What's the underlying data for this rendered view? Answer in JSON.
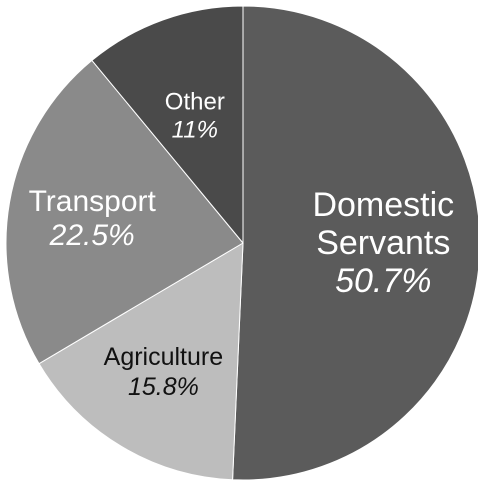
{
  "chart_data": {
    "type": "pie",
    "title": "",
    "start_angle_deg": 0,
    "direction": "clockwise",
    "slices": [
      {
        "label_lines": [
          "Domestic",
          "Servants"
        ],
        "percent_label": "50.7%",
        "value": 50.7,
        "color": "#5b5b5b",
        "label_color": "#ffffff"
      },
      {
        "label_lines": [
          "Agriculture"
        ],
        "percent_label": "15.8%",
        "value": 15.8,
        "color": "#bdbdbd",
        "label_color": "#111111"
      },
      {
        "label_lines": [
          "Transport"
        ],
        "percent_label": "22.5%",
        "value": 22.5,
        "color": "#8a8a8a",
        "label_color": "#ffffff"
      },
      {
        "label_lines": [
          "Other"
        ],
        "percent_label": "11%",
        "value": 11,
        "color": "#4a4a4a",
        "label_color": "#ffffff"
      }
    ]
  }
}
